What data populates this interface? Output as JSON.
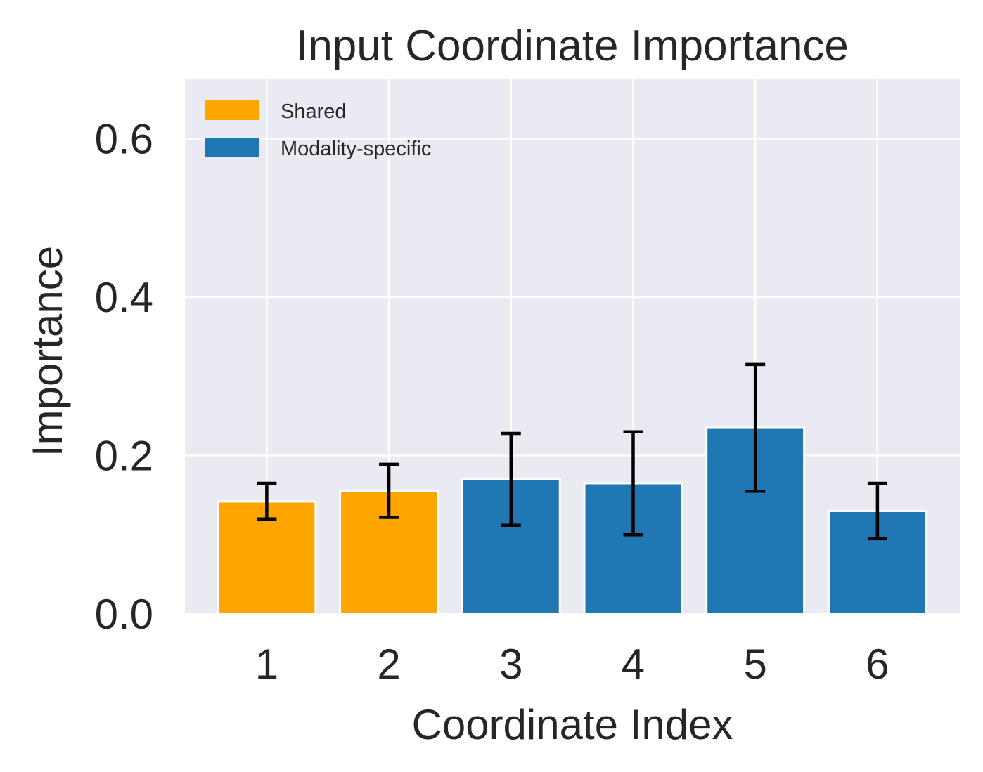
{
  "chart_data": {
    "type": "bar",
    "title": "Input Coordinate Importance",
    "xlabel": "Coordinate Index",
    "ylabel": "Importance",
    "categories": [
      "1",
      "2",
      "3",
      "4",
      "5",
      "6"
    ],
    "values": [
      0.142,
      0.155,
      0.17,
      0.165,
      0.235,
      0.13
    ],
    "error_low": [
      0.12,
      0.122,
      0.112,
      0.1,
      0.155,
      0.095
    ],
    "error_high": [
      0.165,
      0.189,
      0.228,
      0.23,
      0.315,
      0.165
    ],
    "groups": [
      "Shared",
      "Shared",
      "Modality-specific",
      "Modality-specific",
      "Modality-specific",
      "Modality-specific"
    ],
    "ylim": [
      0,
      0.675
    ],
    "yticks": [
      0.0,
      0.2,
      0.4,
      0.6
    ],
    "ytick_labels": [
      "0.0",
      "0.2",
      "0.4",
      "0.6"
    ],
    "grid": true,
    "legend": {
      "position": "top-left",
      "entries": [
        {
          "label": "Shared",
          "color": "#ffa500"
        },
        {
          "label": "Modality-specific",
          "color": "#1f77b4"
        }
      ]
    },
    "colors": {
      "Shared": "#ffa500",
      "Modality-specific": "#1f77b4",
      "plot_background": "#eaeaf2",
      "grid": "#ffffff",
      "error_bar": "#000000"
    }
  }
}
